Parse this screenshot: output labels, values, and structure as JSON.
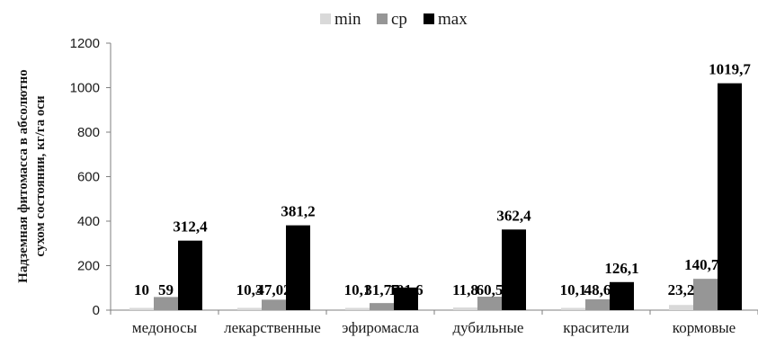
{
  "chart_data": {
    "type": "bar",
    "title": "",
    "xlabel": "",
    "ylabel_lines": [
      "Надземная фитомасса в абсолютно",
      "сухом состоянии,  кг/га оси"
    ],
    "ylim": [
      0,
      1200
    ],
    "yticks": [
      "0",
      "200",
      "400",
      "600",
      "800",
      "1000",
      "1200"
    ],
    "categories": [
      "медоносы",
      "лекарственные",
      "эфиромасла",
      "дубильные",
      "красители",
      "кормовые"
    ],
    "legend_position": "top-center",
    "grid": false,
    "series": [
      {
        "name": "min",
        "color": "#d9d9d9",
        "values": [
          10,
          10.3,
          10.1,
          11.8,
          10.1,
          23.2
        ],
        "labels": [
          "10",
          "10,3",
          "10,1",
          "11,8",
          "10,1",
          "23,2"
        ]
      },
      {
        "name": "ср",
        "color": "#969696",
        "values": [
          59,
          47.02,
          31.77,
          60.5,
          48.6,
          140.74
        ],
        "labels": [
          "59",
          "47,02",
          "31,77",
          "60,5",
          "48,6",
          "140,74"
        ]
      },
      {
        "name": "max",
        "color": "#000000",
        "values": [
          312.4,
          381.2,
          101.6,
          362.4,
          126.1,
          1019.7
        ],
        "labels": [
          "312,4",
          "381,2",
          "101,6",
          "362,4",
          "126,1",
          "1019,7"
        ]
      }
    ]
  }
}
